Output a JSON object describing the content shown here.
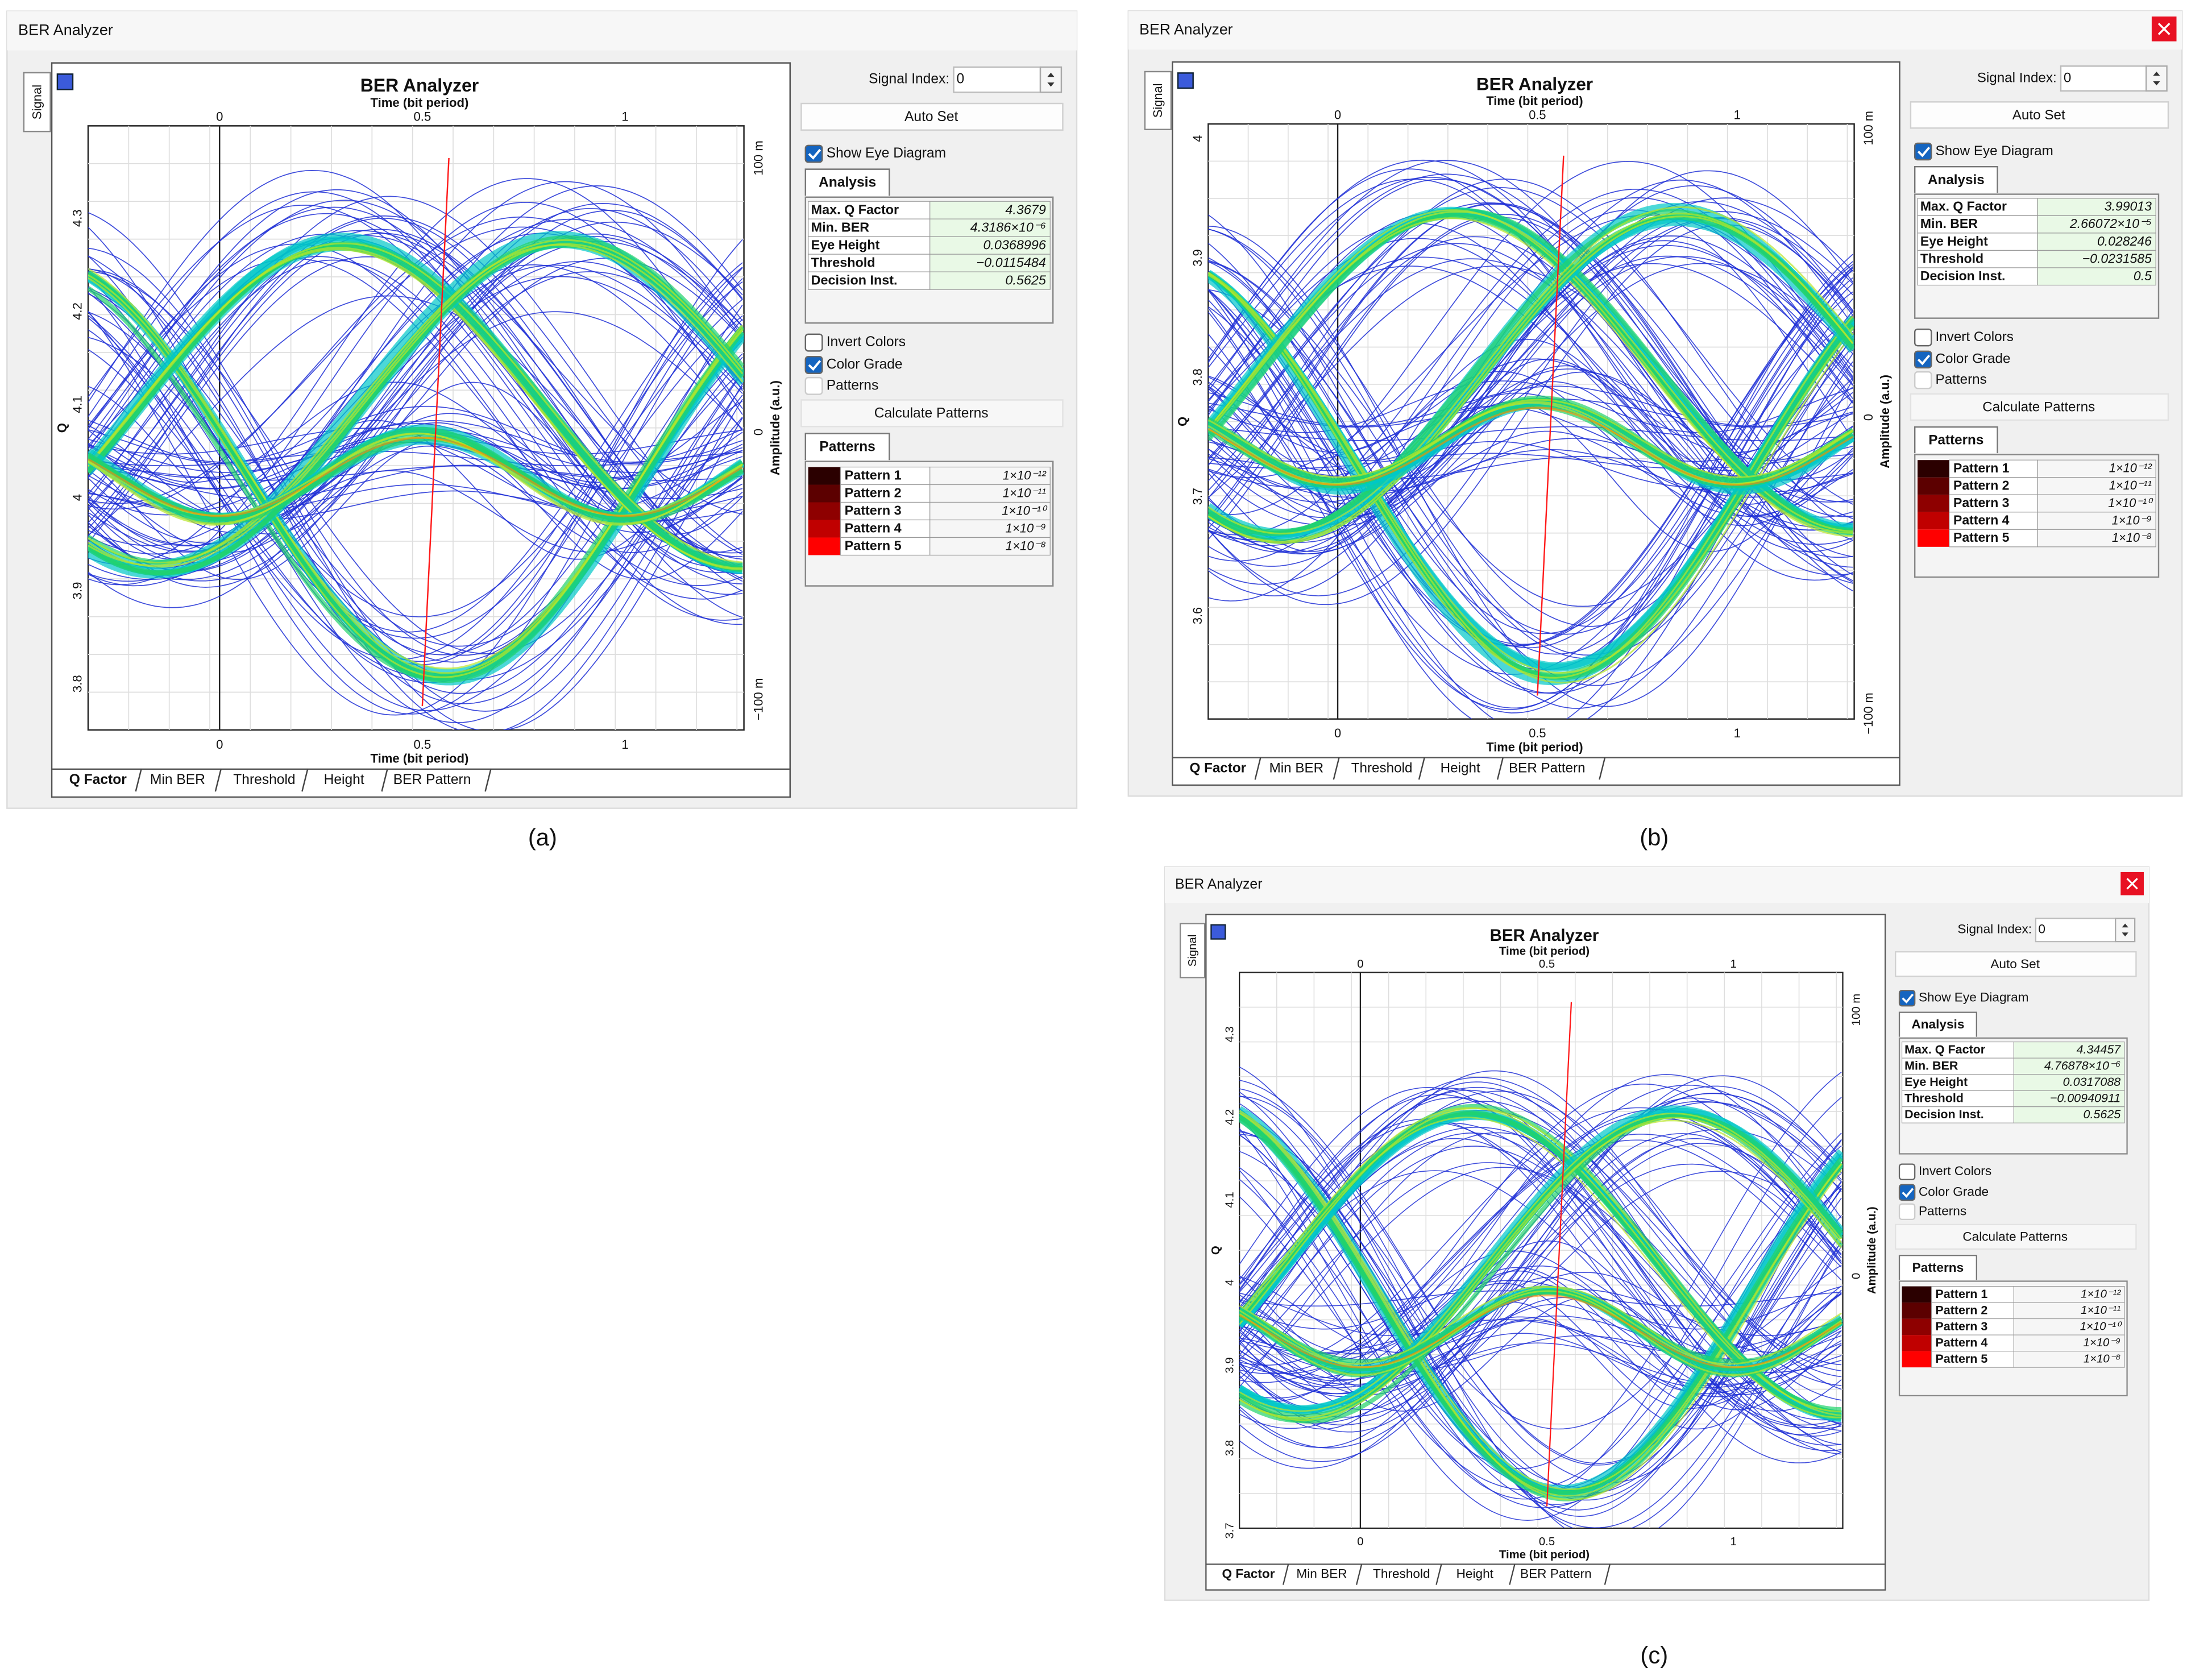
{
  "panels": [
    {
      "caption": "(a)",
      "window_title": "BER Analyzer",
      "side_tab": "Signal",
      "plot_title": "BER Analyzer",
      "x_label_top": "Time (bit period)",
      "x_label_bottom": "Time (bit period)",
      "y_label_left": "Q",
      "y_label_right": "Amplitude (a.u.)",
      "xticks": [
        "0",
        "0.5",
        "1"
      ],
      "yticks_left": [
        "3.8",
        "3.9",
        "4",
        "4.1",
        "4.2",
        "4.3"
      ],
      "yticks_right": [
        "100 m",
        "0",
        "−100 m"
      ],
      "signal_index_label": "Signal Index:",
      "signal_index": "0",
      "auto_set": "Auto Set",
      "show_eye": "Show Eye Diagram",
      "analysis_tab": "Analysis",
      "analysis": [
        [
          "Max. Q Factor",
          "4.3679"
        ],
        [
          "Min. BER",
          "4.3186×10⁻⁶"
        ],
        [
          "Eye Height",
          "0.0368996"
        ],
        [
          "Threshold",
          "−0.0115484"
        ],
        [
          "Decision Inst.",
          "0.5625"
        ]
      ],
      "invert_colors": "Invert Colors",
      "color_grade": "Color Grade",
      "patterns_check": "Patterns",
      "calculate_patterns": "Calculate Patterns",
      "patterns_tab": "Patterns",
      "patterns": [
        [
          "Pattern 1",
          "1×10⁻¹²"
        ],
        [
          "Pattern 2",
          "1×10⁻¹¹"
        ],
        [
          "Pattern 3",
          "1×10⁻¹⁰"
        ],
        [
          "Pattern 4",
          "1×10⁻⁹"
        ],
        [
          "Pattern 5",
          "1×10⁻⁸"
        ]
      ],
      "tabs": [
        "Q Factor",
        "Min BER",
        "Threshold",
        "Height",
        "BER Pattern"
      ]
    },
    {
      "caption": "(b)",
      "window_title": "BER Analyzer",
      "side_tab": "Signal",
      "plot_title": "BER Analyzer",
      "x_label_top": "Time (bit period)",
      "x_label_bottom": "Time (bit period)",
      "y_label_left": "Q",
      "y_label_right": "Amplitude (a.u.)",
      "xticks": [
        "0",
        "0.5",
        "1"
      ],
      "yticks_left": [
        "3.6",
        "3.7",
        "3.8",
        "3.9",
        "4"
      ],
      "yticks_right": [
        "100 m",
        "0",
        "−100 m"
      ],
      "signal_index_label": "Signal Index:",
      "signal_index": "0",
      "auto_set": "Auto Set",
      "show_eye": "Show Eye Diagram",
      "analysis_tab": "Analysis",
      "analysis": [
        [
          "Max. Q Factor",
          "3.99013"
        ],
        [
          "Min. BER",
          "2.66072×10⁻⁵"
        ],
        [
          "Eye Height",
          "0.028246"
        ],
        [
          "Threshold",
          "−0.0231585"
        ],
        [
          "Decision Inst.",
          "0.5"
        ]
      ],
      "invert_colors": "Invert Colors",
      "color_grade": "Color Grade",
      "patterns_check": "Patterns",
      "calculate_patterns": "Calculate Patterns",
      "patterns_tab": "Patterns",
      "patterns": [
        [
          "Pattern 1",
          "1×10⁻¹²"
        ],
        [
          "Pattern 2",
          "1×10⁻¹¹"
        ],
        [
          "Pattern 3",
          "1×10⁻¹⁰"
        ],
        [
          "Pattern 4",
          "1×10⁻⁹"
        ],
        [
          "Pattern 5",
          "1×10⁻⁸"
        ]
      ],
      "tabs": [
        "Q Factor",
        "Min BER",
        "Threshold",
        "Height",
        "BER Pattern"
      ]
    },
    {
      "caption": "(c)",
      "window_title": "BER Analyzer",
      "side_tab": "Signal",
      "plot_title": "BER Analyzer",
      "x_label_top": "Time (bit period)",
      "x_label_bottom": "Time (bit period)",
      "y_label_left": "Q",
      "y_label_right": "Amplitude (a.u.)",
      "xticks": [
        "0",
        "0.5",
        "1"
      ],
      "yticks_left": [
        "3.7",
        "3.8",
        "3.9",
        "4",
        "4.1",
        "4.2",
        "4.3"
      ],
      "yticks_right": [
        "100 m",
        "0"
      ],
      "signal_index_label": "Signal Index:",
      "signal_index": "0",
      "auto_set": "Auto Set",
      "show_eye": "Show Eye Diagram",
      "analysis_tab": "Analysis",
      "analysis": [
        [
          "Max. Q Factor",
          "4.34457"
        ],
        [
          "Min. BER",
          "4.76878×10⁻⁶"
        ],
        [
          "Eye Height",
          "0.0317088"
        ],
        [
          "Threshold",
          "−0.00940911"
        ],
        [
          "Decision Inst.",
          "0.5625"
        ]
      ],
      "invert_colors": "Invert Colors",
      "color_grade": "Color Grade",
      "patterns_check": "Patterns",
      "calculate_patterns": "Calculate Patterns",
      "patterns_tab": "Patterns",
      "patterns": [
        [
          "Pattern 1",
          "1×10⁻¹²"
        ],
        [
          "Pattern 2",
          "1×10⁻¹¹"
        ],
        [
          "Pattern 3",
          "1×10⁻¹⁰"
        ],
        [
          "Pattern 4",
          "1×10⁻⁹"
        ],
        [
          "Pattern 5",
          "1×10⁻⁸"
        ]
      ],
      "tabs": [
        "Q Factor",
        "Min BER",
        "Threshold",
        "Height",
        "BER Pattern"
      ]
    }
  ]
}
